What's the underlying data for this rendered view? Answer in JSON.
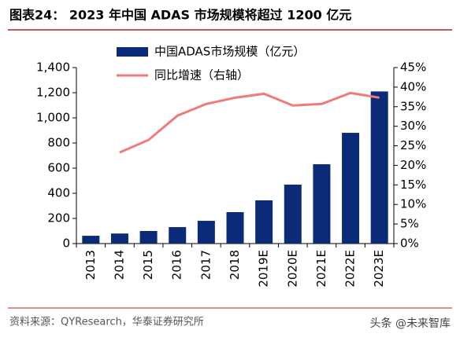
{
  "chart_data": {
    "type": "bar_line",
    "title": "图表24：  2023 年中国 ADAS 市场规模将超过 1200 亿元",
    "source": "资料来源：QYResearch，华泰证券研究所",
    "watermark": "头条 @未来智库",
    "categories": [
      "2013",
      "2014",
      "2015",
      "2016",
      "2017",
      "2018",
      "2019E",
      "2020E",
      "2021E",
      "2022E",
      "2023E"
    ],
    "series": [
      {
        "name": "中国ADAS市场规模（亿元）",
        "type": "bar",
        "color": "#0b2a78",
        "values": [
          62,
          80,
          100,
          131,
          181,
          250,
          344,
          469,
          631,
          881,
          1210
        ]
      },
      {
        "name": "同比增速（右轴）",
        "type": "line",
        "axis": "y2",
        "color": "#ef7b7b",
        "values": [
          null,
          23.3,
          26.5,
          32.7,
          35.7,
          37.3,
          38.3,
          35.3,
          35.7,
          38.5,
          37.3
        ]
      }
    ],
    "ylim": [
      0,
      1400
    ],
    "yticks": [
      0,
      200,
      400,
      600,
      800,
      {
        "value": 1000,
        "label": "1,000"
      },
      {
        "value": 1200,
        "label": "1,200"
      },
      {
        "value": 1400,
        "label": "1,400"
      }
    ],
    "y2lim": [
      0,
      45
    ],
    "y2ticks": [
      {
        "value": 0,
        "label": "0%"
      },
      {
        "value": 5,
        "label": "5%"
      },
      {
        "value": 10,
        "label": "10%"
      },
      {
        "value": 15,
        "label": "15%"
      },
      {
        "value": 20,
        "label": "20%"
      },
      {
        "value": 25,
        "label": "25%"
      },
      {
        "value": 30,
        "label": "30%"
      },
      {
        "value": 35,
        "label": "35%"
      },
      {
        "value": 40,
        "label": "40%"
      },
      {
        "value": 45,
        "label": "45%"
      }
    ]
  }
}
